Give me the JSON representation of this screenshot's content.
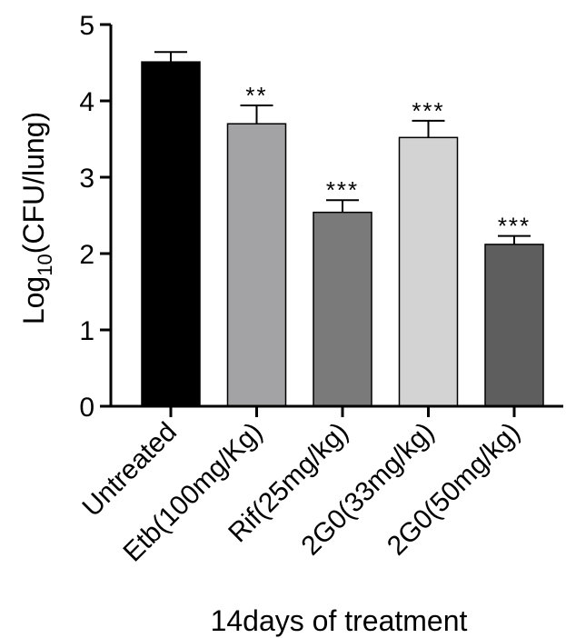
{
  "chart_data": {
    "type": "bar",
    "title": "",
    "xlabel": "14days of treatment",
    "ylabel_main": "Log",
    "ylabel_sub": "10",
    "ylabel_rest": "(CFU/lung)",
    "ylim": [
      0,
      5
    ],
    "yticks": [
      "0",
      "1",
      "2",
      "3",
      "4",
      "5"
    ],
    "categories": [
      "Untreated",
      "Etb(100mg/Kg)",
      "Rif(25mg/kg)",
      "2G0(33mg/kg)",
      "2G0(50mg/kg)"
    ],
    "values": [
      4.51,
      3.7,
      2.54,
      3.52,
      2.12
    ],
    "errors": [
      0.13,
      0.24,
      0.16,
      0.22,
      0.11
    ],
    "significance": [
      "",
      "**",
      "***",
      "***",
      "***"
    ],
    "colors": [
      "#000000",
      "#a3a3a6",
      "#7a7a7a",
      "#d3d3d3",
      "#5e5e5e"
    ],
    "grid": false,
    "legend": "none"
  }
}
